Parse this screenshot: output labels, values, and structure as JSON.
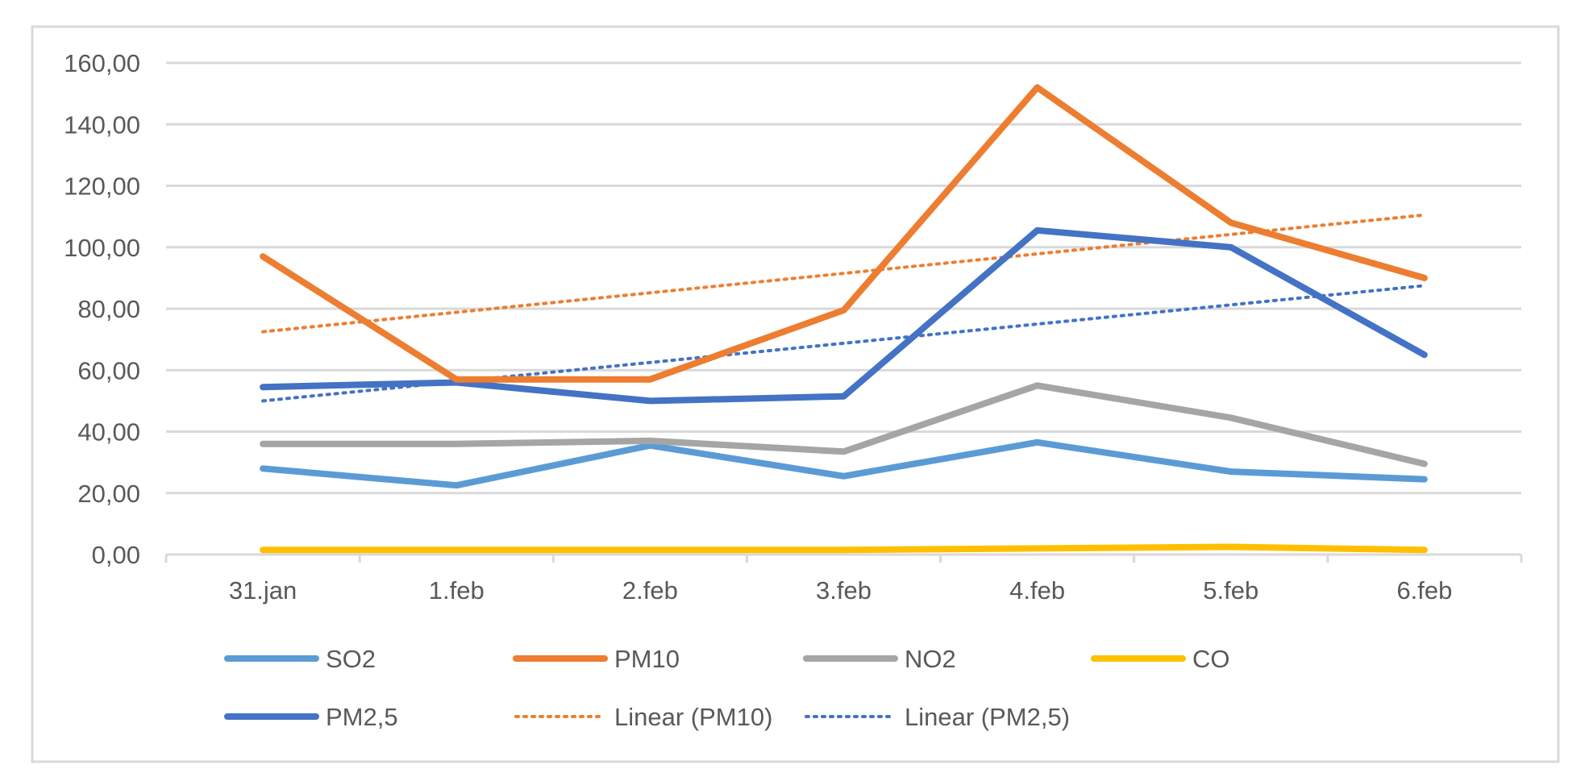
{
  "chart_data": {
    "type": "line",
    "categories": [
      "31.jan",
      "1.feb",
      "2.feb",
      "3.feb",
      "4.feb",
      "5.feb",
      "6.feb"
    ],
    "ylim": [
      0,
      160
    ],
    "y_ticks": [
      "0,00",
      "20,00",
      "40,00",
      "60,00",
      "80,00",
      "100,00",
      "120,00",
      "140,00",
      "160,00"
    ],
    "y_tick_values": [
      0,
      20,
      40,
      60,
      80,
      100,
      120,
      140,
      160
    ],
    "grid": true,
    "legend_position": "bottom",
    "series": [
      {
        "name": "SO2",
        "color": "#5b9bd5",
        "style": "solid",
        "values": [
          28,
          22.5,
          35.5,
          25.5,
          36.5,
          27,
          24.5
        ]
      },
      {
        "name": "PM10",
        "color": "#ed7d31",
        "style": "solid",
        "values": [
          97,
          57,
          57,
          79.5,
          152,
          108,
          90
        ]
      },
      {
        "name": "NO2",
        "color": "#a5a5a5",
        "style": "solid",
        "values": [
          36,
          36,
          37,
          33.5,
          55,
          44.5,
          29.5
        ]
      },
      {
        "name": "CO",
        "color": "#ffc000",
        "style": "solid",
        "values": [
          1.5,
          1.5,
          1.5,
          1.5,
          2,
          2.5,
          1.5
        ]
      },
      {
        "name": "PM2,5",
        "color": "#4472c4",
        "style": "solid",
        "values": [
          54.5,
          56,
          50,
          51.5,
          105.5,
          100,
          65
        ]
      }
    ],
    "trendlines": [
      {
        "name": "Linear (PM10)",
        "color": "#ed7d31",
        "style": "dotted",
        "start": 72.5,
        "end": 110.5
      },
      {
        "name": "Linear (PM2,5)",
        "color": "#4472c4",
        "style": "dotted",
        "start": 50,
        "end": 87.5
      }
    ]
  }
}
